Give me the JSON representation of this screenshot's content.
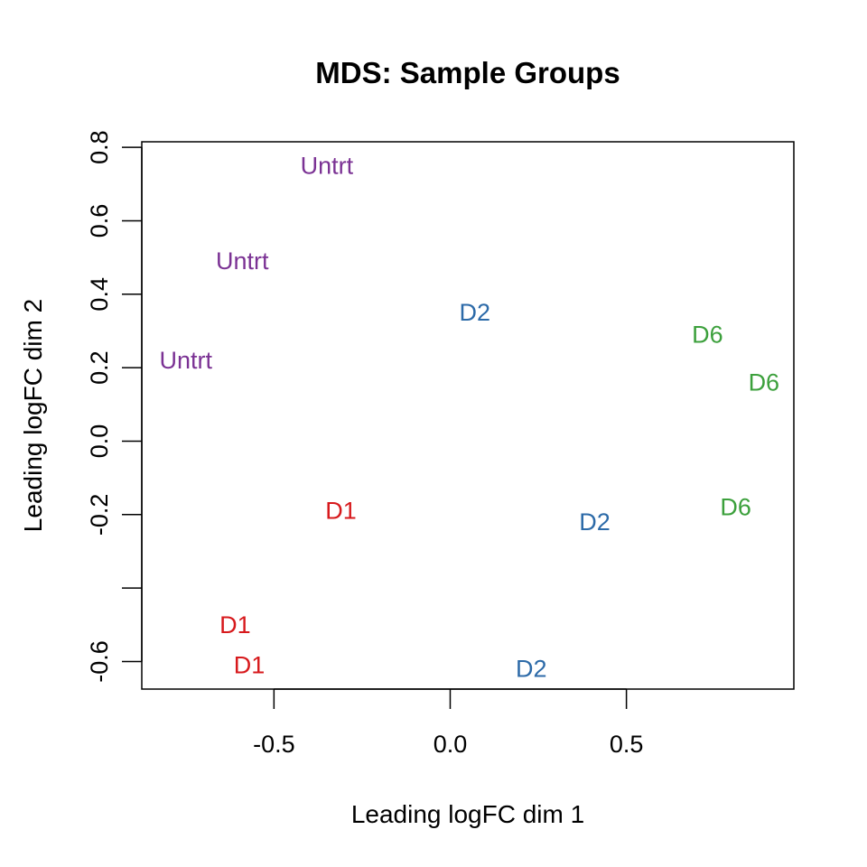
{
  "chart_data": {
    "type": "scatter",
    "title": "MDS: Sample Groups",
    "xlabel": "Leading logFC dim 1",
    "ylabel": "Leading logFC dim 2",
    "xlim": [
      -0.875,
      0.975
    ],
    "ylim": [
      -0.675,
      0.815
    ],
    "x_ticks": [
      -0.5,
      0.0,
      0.5
    ],
    "x_tick_labels": [
      "-0.5",
      "0.0",
      "0.5"
    ],
    "y_ticks": [
      -0.6,
      -0.4,
      -0.2,
      0.0,
      0.2,
      0.4,
      0.6,
      0.8
    ],
    "y_tick_labels": [
      "-0.6",
      "",
      "-0.2",
      "0.0",
      "0.2",
      "0.4",
      "0.6",
      "0.8"
    ],
    "grid": false,
    "colors": {
      "Untrt": "#7B3294",
      "D1": "#D7191C",
      "D2": "#2C6AA8",
      "D6": "#3CA03C"
    },
    "points": [
      {
        "label": "Untrt",
        "x": -0.35,
        "y": 0.75
      },
      {
        "label": "Untrt",
        "x": -0.59,
        "y": 0.49
      },
      {
        "label": "Untrt",
        "x": -0.75,
        "y": 0.22
      },
      {
        "label": "D2",
        "x": 0.07,
        "y": 0.35
      },
      {
        "label": "D6",
        "x": 0.73,
        "y": 0.29
      },
      {
        "label": "D6",
        "x": 0.89,
        "y": 0.16
      },
      {
        "label": "D1",
        "x": -0.31,
        "y": -0.19
      },
      {
        "label": "D2",
        "x": 0.41,
        "y": -0.22
      },
      {
        "label": "D6",
        "x": 0.81,
        "y": -0.18
      },
      {
        "label": "D1",
        "x": -0.61,
        "y": -0.5
      },
      {
        "label": "D1",
        "x": -0.57,
        "y": -0.61
      },
      {
        "label": "D2",
        "x": 0.23,
        "y": -0.62
      }
    ]
  }
}
